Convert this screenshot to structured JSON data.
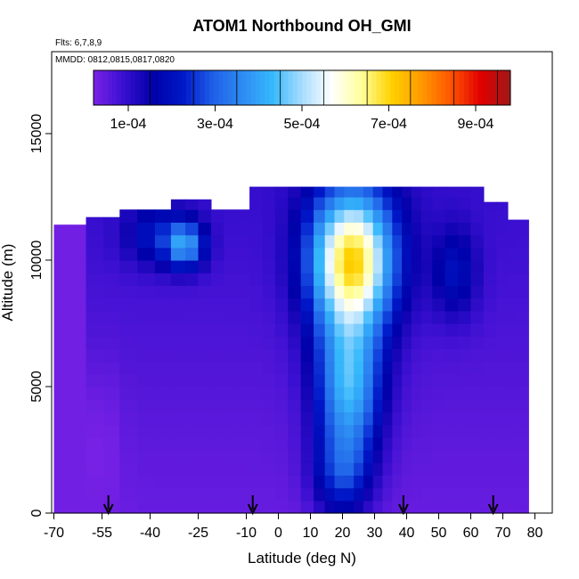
{
  "chart_data": {
    "type": "heatmap",
    "title": "ATOM1 Northbound OH_GMI",
    "note_flights": "Flts: 6,7,8,9",
    "note_dates": "MMDD: 0812,0815,0817,0820",
    "xlabel": "Latitude (deg N)",
    "ylabel": "Altitude (m)",
    "xlim": [
      -70,
      80
    ],
    "ylim": [
      0,
      17500
    ],
    "x_ticks": [
      -70,
      -55,
      -40,
      -25,
      -10,
      0,
      10,
      20,
      30,
      40,
      50,
      60,
      70,
      80
    ],
    "y_ticks": [
      0,
      5000,
      10000,
      15000
    ],
    "colorbar": {
      "range": [
        2e-05,
        0.00098
      ],
      "tick_values": [
        0.0001,
        0.0003,
        0.0005,
        0.0007,
        0.0009
      ],
      "tick_labels": [
        "1e-04",
        "3e-04",
        "5e-04",
        "7e-04",
        "9e-04"
      ],
      "colors": [
        "#7a22e6",
        "#3a0fd0",
        "#0000a8",
        "#0018c8",
        "#1f5ee8",
        "#2e8bf2",
        "#35b8fc",
        "#a8dcff",
        "#ffffff",
        "#ffff9a",
        "#ffd100",
        "#ff9a00",
        "#ff5500",
        "#e00000",
        "#a01818"
      ]
    },
    "grid": false,
    "legend": "colorbar at top",
    "data_x_centers": [
      -67,
      -63,
      -57,
      -52,
      -47,
      -41,
      -36,
      -31,
      -27,
      -23,
      -19,
      -15,
      -11,
      -7,
      -3,
      1,
      5,
      9,
      13,
      16,
      19,
      22,
      25,
      28,
      31,
      34,
      37,
      40,
      43,
      46,
      50,
      54,
      58,
      62,
      66,
      70,
      73,
      76
    ],
    "data_y_centers": [
      250,
      750,
      1250,
      1750,
      2250,
      2750,
      3250,
      3750,
      4250,
      4750,
      5250,
      5750,
      6250,
      6750,
      7250,
      7750,
      8250,
      8750,
      9250,
      9750,
      10250,
      10750,
      11250,
      11750,
      12250,
      12750
    ],
    "flight_markers_lat": [
      -53,
      -8,
      39,
      67
    ]
  }
}
